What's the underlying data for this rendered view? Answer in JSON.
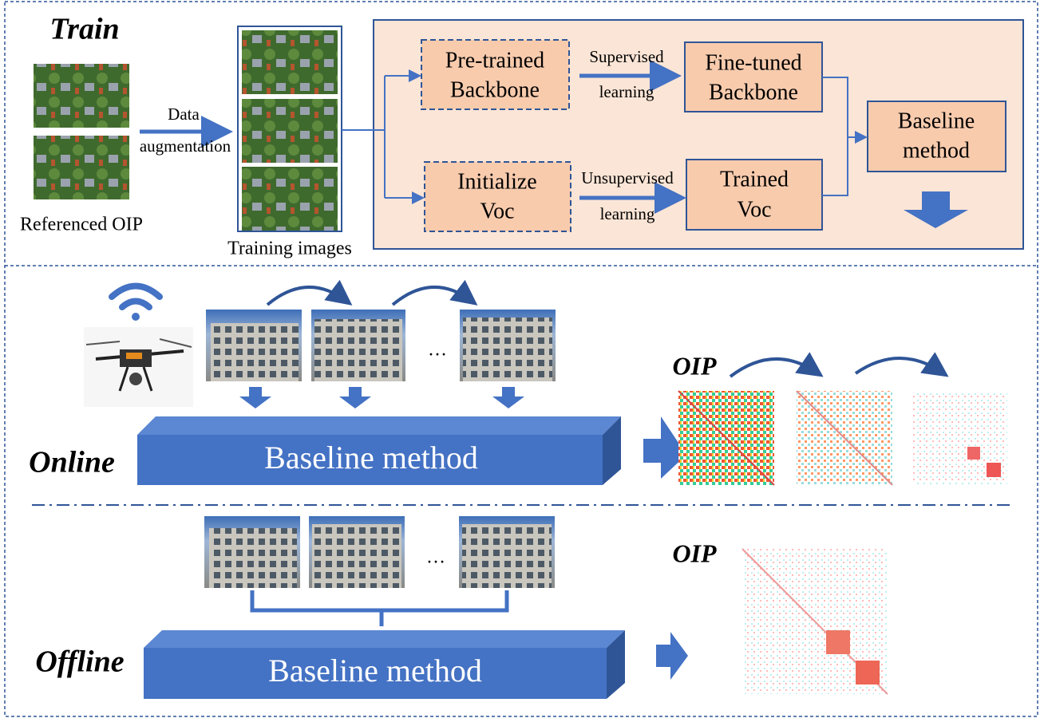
{
  "train": {
    "title": "Train",
    "referenced_label": "Referenced OIP",
    "augmentation_label": [
      "Data",
      "augmentation"
    ],
    "training_label": "Training images",
    "nodes": [
      {
        "label": [
          "Pre-trained",
          "Backbone"
        ]
      },
      {
        "label": [
          "Fine-tuned",
          "Backbone"
        ]
      },
      {
        "label": [
          "Baseline",
          "method"
        ]
      },
      {
        "label": [
          "Initialize",
          "Voc"
        ]
      },
      {
        "label": [
          "Trained",
          "Voc"
        ]
      }
    ],
    "edges": [
      {
        "label": [
          "Supervised",
          "learning"
        ]
      },
      {
        "label": [
          "Unsupervised",
          "learning"
        ]
      }
    ]
  },
  "online": {
    "title": "Online",
    "block_label": "Baseline method",
    "oip_label": "OIP",
    "ellipsis": "…"
  },
  "offline": {
    "title": "Offline",
    "block_label": "Baseline method",
    "oip_label": "OIP",
    "ellipsis": "…"
  }
}
